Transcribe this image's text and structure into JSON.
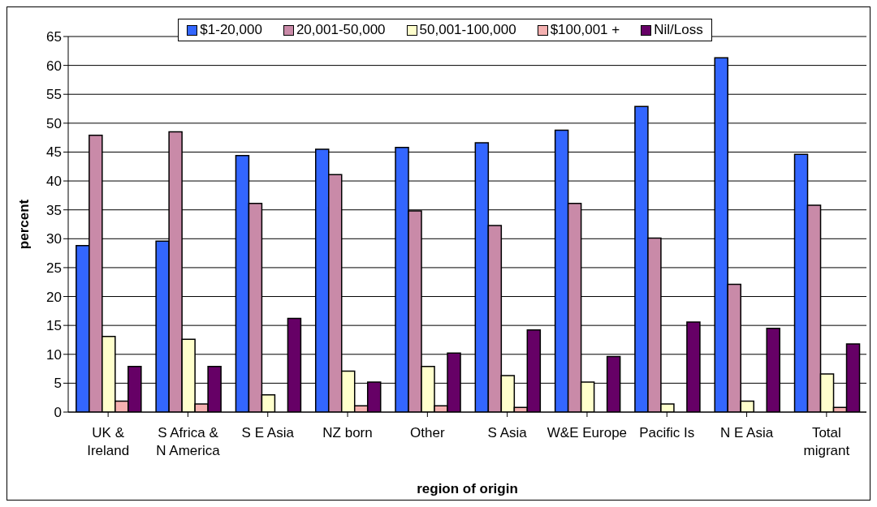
{
  "chart_data": {
    "type": "bar",
    "xlabel": "region of origin",
    "ylabel": "percent",
    "categories": [
      "UK & Ireland",
      "S Africa & N America",
      "S E Asia",
      "NZ born",
      "Other",
      "S Asia",
      "W&E Europe",
      "Pacific Is",
      "N E Asia",
      "Total migrant"
    ],
    "series": [
      {
        "name": "$1-20,000",
        "color": "#3366ff",
        "values": [
          28.8,
          29.6,
          44.4,
          45.5,
          45.8,
          46.6,
          48.8,
          52.9,
          61.3,
          44.6
        ]
      },
      {
        "name": "20,001-50,000",
        "color": "#c98aa8",
        "values": [
          47.9,
          48.5,
          36.1,
          41.1,
          34.8,
          32.3,
          36.1,
          30.1,
          22.1,
          35.8
        ]
      },
      {
        "name": "50,001-100,000",
        "color": "#ffffcc",
        "values": [
          13.1,
          12.6,
          3.0,
          7.1,
          7.9,
          6.3,
          5.2,
          1.4,
          1.9,
          6.6
        ]
      },
      {
        "name": "$100,001 +",
        "color": "#f4b0b0",
        "values": [
          1.9,
          1.4,
          null,
          1.1,
          1.1,
          0.8,
          null,
          null,
          0,
          0.8
        ]
      },
      {
        "name": "Nil/Loss",
        "color": "#660066",
        "values": [
          7.9,
          7.9,
          16.2,
          5.2,
          10.2,
          14.2,
          9.6,
          15.6,
          14.5,
          11.8
        ]
      }
    ],
    "ylim": [
      0,
      65
    ],
    "yticks": [
      0,
      5,
      10,
      15,
      20,
      25,
      30,
      35,
      40,
      45,
      50,
      55,
      60,
      65
    ],
    "grid": "y",
    "legend": "top"
  }
}
